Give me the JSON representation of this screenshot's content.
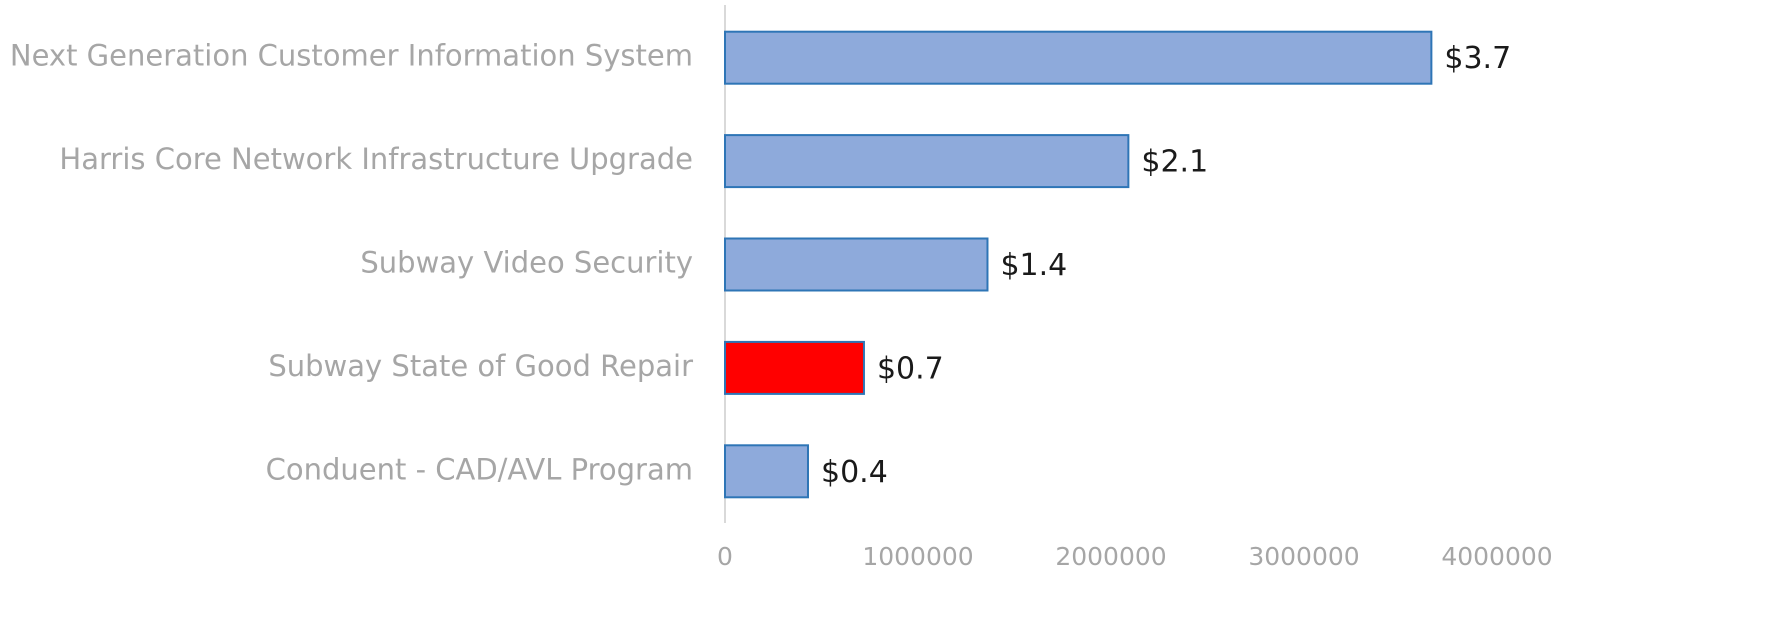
{
  "chart_data": {
    "type": "barh",
    "categories": [
      "Next Generation Customer Information System",
      "Harris Core Network Infrastructure Upgrade",
      "Subway Video Security",
      "Subway State of Good Repair",
      "Conduent - CAD/AVL Program"
    ],
    "values": [
      3660000,
      2090000,
      1360000,
      720000,
      430000
    ],
    "value_labels": [
      "$3.7",
      "$2.1",
      "$1.4",
      "$0.7",
      "$0.4"
    ],
    "colors": [
      "#8eaadb",
      "#8eaadb",
      "#8eaadb",
      "#ff0000",
      "#8eaadb"
    ],
    "edgecolor": "#2e75b6",
    "xlim": [
      0,
      4000000
    ],
    "xticks": [
      0,
      1000000,
      2000000,
      3000000,
      4000000
    ],
    "grid": false
  }
}
